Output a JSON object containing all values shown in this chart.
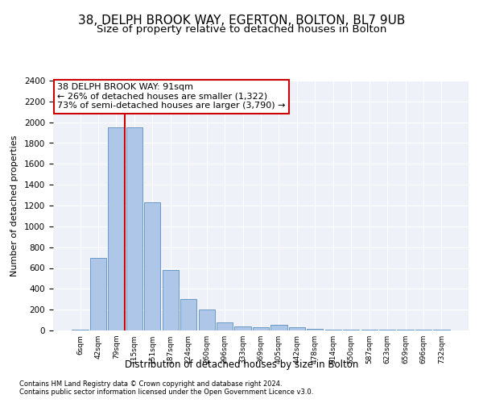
{
  "title1": "38, DELPH BROOK WAY, EGERTON, BOLTON, BL7 9UB",
  "title2": "Size of property relative to detached houses in Bolton",
  "xlabel": "Distribution of detached houses by size in Bolton",
  "ylabel": "Number of detached properties",
  "categories": [
    "6sqm",
    "42sqm",
    "79sqm",
    "115sqm",
    "151sqm",
    "187sqm",
    "224sqm",
    "260sqm",
    "296sqm",
    "333sqm",
    "369sqm",
    "405sqm",
    "442sqm",
    "478sqm",
    "514sqm",
    "550sqm",
    "587sqm",
    "623sqm",
    "659sqm",
    "696sqm",
    "732sqm"
  ],
  "values": [
    10,
    700,
    1950,
    1950,
    1230,
    580,
    305,
    200,
    75,
    40,
    30,
    55,
    30,
    15,
    10,
    5,
    5,
    10,
    5,
    5,
    10
  ],
  "bar_color": "#aec6e8",
  "bar_edge_color": "#5a8fc0",
  "vline_color": "#cc0000",
  "annotation_text": "38 DELPH BROOK WAY: 91sqm\n← 26% of detached houses are smaller (1,322)\n73% of semi-detached houses are larger (3,790) →",
  "annotation_box_color": "#ffffff",
  "annotation_box_edgecolor": "#cc0000",
  "ylim": [
    0,
    2400
  ],
  "yticks": [
    0,
    200,
    400,
    600,
    800,
    1000,
    1200,
    1400,
    1600,
    1800,
    2000,
    2200,
    2400
  ],
  "footnote1": "Contains HM Land Registry data © Crown copyright and database right 2024.",
  "footnote2": "Contains public sector information licensed under the Open Government Licence v3.0.",
  "bg_color": "#eef2f8",
  "fig_bg_color": "#ffffff",
  "title1_fontsize": 11,
  "title2_fontsize": 9.5,
  "annot_fontsize": 8
}
